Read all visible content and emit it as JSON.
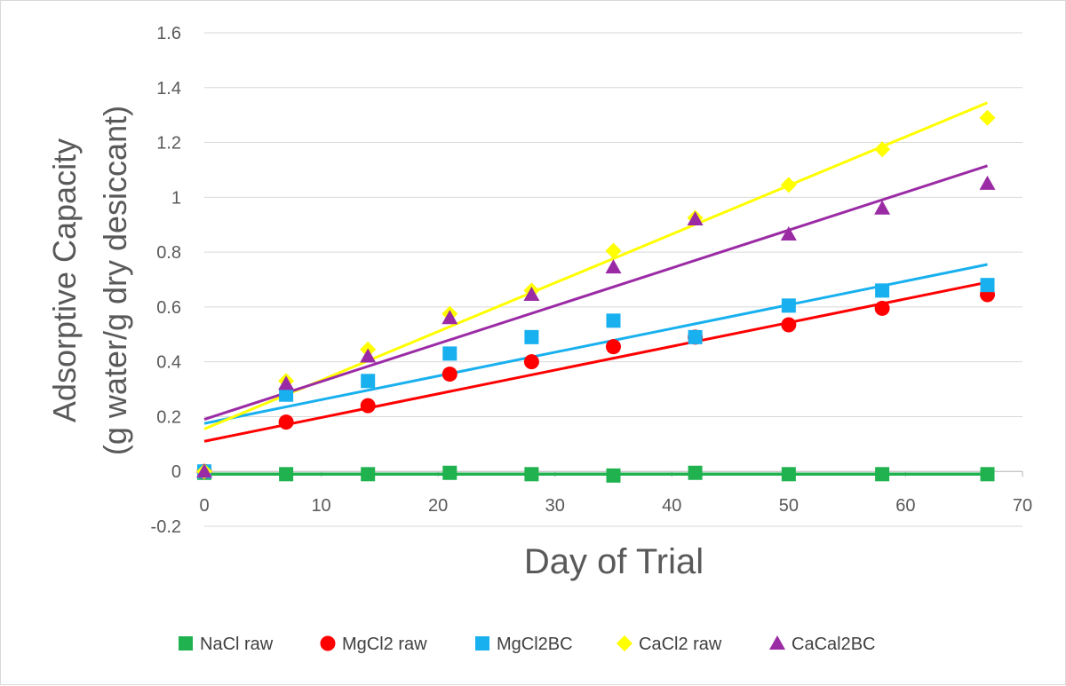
{
  "chart_data": {
    "type": "scatter",
    "title": "",
    "xlabel": "Day of Trial",
    "ylabel_line1": "Adsorptive Capacity",
    "ylabel_line2": "(g water/g dry desiccant)",
    "xlim": [
      0,
      70
    ],
    "ylim": [
      -0.2,
      1.6
    ],
    "x_ticks": [
      0,
      10,
      20,
      30,
      40,
      50,
      60,
      70
    ],
    "y_ticks": [
      -0.2,
      0,
      0.2,
      0.4,
      0.6,
      0.8,
      1,
      1.2,
      1.4,
      1.6
    ],
    "x_tick_labels": [
      "0",
      "10",
      "20",
      "30",
      "40",
      "50",
      "60",
      "70"
    ],
    "y_tick_labels": [
      "-0.2",
      "0",
      "0.2",
      "0.4",
      "0.6",
      "0.8",
      "1",
      "1.2",
      "1.4",
      "1.6"
    ],
    "grid": "horizontal",
    "legend_position": "bottom",
    "series": [
      {
        "name": "NaCl raw",
        "marker": "square",
        "color": "#1fb24f",
        "x": [
          0,
          7,
          14,
          21,
          28,
          35,
          42,
          50,
          58,
          67
        ],
        "y": [
          -0.005,
          -0.01,
          -0.01,
          -0.005,
          -0.01,
          -0.015,
          -0.005,
          -0.01,
          -0.01,
          -0.01
        ],
        "trend": [
          -0.01,
          -0.01
        ]
      },
      {
        "name": "MgCl2 raw",
        "marker": "circle",
        "color": "#ff0000",
        "x": [
          0,
          7,
          14,
          21,
          28,
          35,
          42,
          50,
          58,
          67
        ],
        "y": [
          0,
          0.18,
          0.24,
          0.355,
          0.4,
          0.455,
          0.49,
          0.535,
          0.595,
          0.645
        ],
        "trend": [
          0.11,
          0.69
        ]
      },
      {
        "name": "MgCl2BC",
        "marker": "square",
        "color": "#18b0ef",
        "x": [
          0,
          7,
          14,
          21,
          28,
          35,
          42,
          50,
          58,
          67
        ],
        "y": [
          0,
          0.28,
          0.33,
          0.43,
          0.49,
          0.55,
          0.49,
          0.605,
          0.66,
          0.68
        ],
        "trend": [
          0.175,
          0.755
        ]
      },
      {
        "name": "CaCl2 raw",
        "marker": "diamond",
        "color": "#ffff00",
        "x": [
          0,
          7,
          14,
          21,
          28,
          35,
          42,
          50,
          58,
          67
        ],
        "y": [
          0,
          0.33,
          0.445,
          0.575,
          0.66,
          0.805,
          0.925,
          1.045,
          1.175,
          1.29
        ],
        "trend": [
          0.155,
          1.345
        ]
      },
      {
        "name": "CaCal2BC",
        "marker": "triangle",
        "color": "#9b2ba5",
        "x": [
          0,
          7,
          14,
          21,
          28,
          35,
          42,
          50,
          58,
          67
        ],
        "y": [
          0,
          0.32,
          0.42,
          0.56,
          0.645,
          0.745,
          0.92,
          0.865,
          0.96,
          1.05
        ],
        "trend": [
          0.19,
          1.115
        ]
      }
    ]
  }
}
